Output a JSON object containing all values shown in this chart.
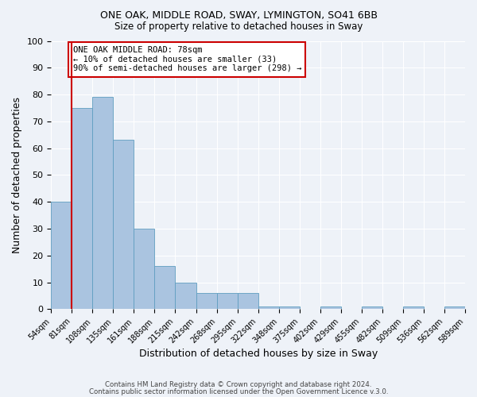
{
  "title1": "ONE OAK, MIDDLE ROAD, SWAY, LYMINGTON, SO41 6BB",
  "title2": "Size of property relative to detached houses in Sway",
  "xlabel": "Distribution of detached houses by size in Sway",
  "ylabel": "Number of detached properties",
  "bar_values": [
    40,
    75,
    79,
    63,
    30,
    16,
    10,
    6,
    6,
    6,
    1,
    1,
    0,
    1,
    0,
    1,
    0,
    1,
    0,
    1
  ],
  "bin_labels": [
    "54sqm",
    "81sqm",
    "108sqm",
    "135sqm",
    "161sqm",
    "188sqm",
    "215sqm",
    "242sqm",
    "268sqm",
    "295sqm",
    "322sqm",
    "348sqm",
    "375sqm",
    "402sqm",
    "429sqm",
    "455sqm",
    "482sqm",
    "509sqm",
    "536sqm",
    "562sqm",
    "589sqm"
  ],
  "bar_color": "#aac4e0",
  "bar_edge_color": "#5f9ec0",
  "red_line_x": 1,
  "ylim": [
    0,
    100
  ],
  "yticks": [
    0,
    10,
    20,
    30,
    40,
    50,
    60,
    70,
    80,
    90,
    100
  ],
  "annotation_box_text": "ONE OAK MIDDLE ROAD: 78sqm\n← 10% of detached houses are smaller (33)\n90% of semi-detached houses are larger (298) →",
  "footer1": "Contains HM Land Registry data © Crown copyright and database right 2024.",
  "footer2": "Contains public sector information licensed under the Open Government Licence v.3.0.",
  "bg_color": "#eef2f8",
  "grid_color": "#ffffff",
  "box_edge_color": "#cc0000",
  "box_face_color": "#ffffff",
  "red_line_color": "#cc0000"
}
